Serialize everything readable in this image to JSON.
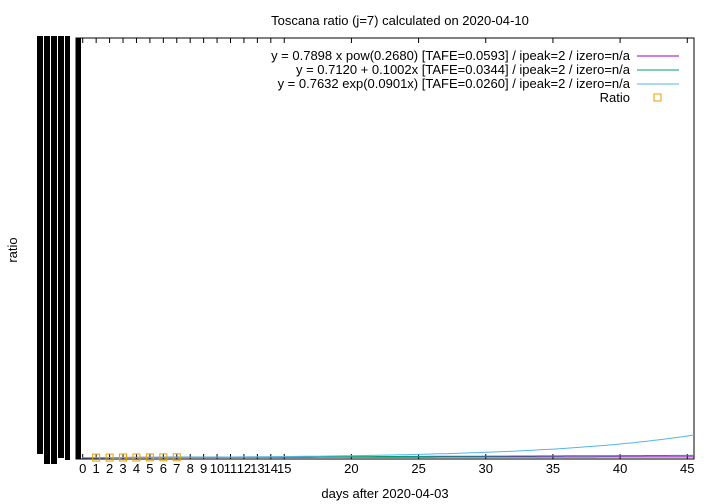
{
  "chart_data": {
    "type": "line",
    "title": "Toscana ratio (j=7) calculated on 2020-04-10",
    "xlabel": "days after 2020-04-03",
    "ylabel": "ratio",
    "xlim": [
      -0.5,
      45.5
    ],
    "x_ticks": [
      0,
      1,
      2,
      3,
      4,
      5,
      6,
      7,
      8,
      9,
      10,
      11,
      12,
      13,
      14,
      15,
      20,
      25,
      30,
      35,
      40,
      45
    ],
    "grid": false,
    "legend_position": "top-right",
    "series": [
      {
        "name": "y = 0.7898 x pow(0.2680)  [TAFE=0.0593] / ipeak=2 / izero=n/a",
        "kind": "line",
        "color": "#9400d3",
        "model": "power",
        "a": 0.7898,
        "b": 0.268
      },
      {
        "name": "y = 0.7120 + 0.1002x  [TAFE=0.0344] / ipeak=2 / izero=n/a",
        "kind": "line",
        "color": "#009e73",
        "model": "linear",
        "a": 0.712,
        "b": 0.1002
      },
      {
        "name": "y = 0.7632 exp(0.0901x)  [TAFE=0.0260] / ipeak=2 / izero=n/a",
        "kind": "line",
        "color": "#56b4e9",
        "model": "exp",
        "a": 0.7632,
        "b": 0.0901
      },
      {
        "name": "Ratio",
        "kind": "points",
        "color": "#e69f00",
        "x": [
          1,
          2,
          3,
          4,
          5,
          6,
          7
        ],
        "y": [
          0.8,
          0.9,
          1.0,
          1.1,
          1.2,
          1.3,
          1.4
        ]
      }
    ]
  }
}
